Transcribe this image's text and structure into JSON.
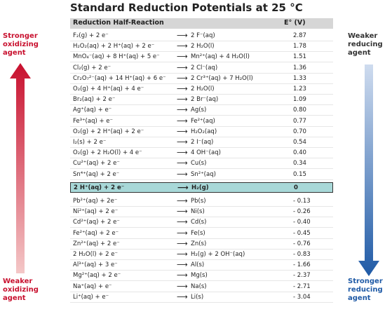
{
  "header": {
    "title": "Standard Reduction Potentials at 25 °C",
    "col_reaction": "Reduction Half-Reaction",
    "col_potential": "E° (V)"
  },
  "left_top": "Stronger oxidizing agent",
  "left_bottom": "Weaker oxidizing agent",
  "right_top": "Weaker reducing agent",
  "right_bottom": "Stronger reducing agent",
  "table": {
    "rows": [
      [
        "F₂(g) + 2 e⁻",
        "2 F⁻(aq)",
        "2.87"
      ],
      [
        "H₂O₂(aq) + 2 H⁺(aq) + 2 e⁻",
        "2 H₂O(l)",
        "1.78"
      ],
      [
        "MnO₄⁻(aq) + 8 H⁺(aq) + 5 e⁻",
        "Mn²⁺(aq) + 4 H₂O(l)",
        "1.51"
      ],
      [
        "Cl₂(g) + 2 e⁻",
        "2 Cl⁻(aq)",
        "1.36"
      ],
      [
        "Cr₂O₇²⁻(aq) + 14 H⁺(aq) + 6 e⁻",
        "2 Cr³⁺(aq) + 7 H₂O(l)",
        "1.33"
      ],
      [
        "O₂(g) + 4 H⁺(aq) + 4 e⁻",
        "2 H₂O(l)",
        "1.23"
      ],
      [
        "Br₂(aq) + 2 e⁻",
        "2 Br⁻(aq)",
        "1.09"
      ],
      [
        "Ag⁺(aq) + e⁻",
        "Ag(s)",
        "0.80"
      ],
      [
        "Fe³⁺(aq) + e⁻",
        "Fe²⁺(aq)",
        "0.77"
      ],
      [
        "O₂(g) + 2 H⁺(aq) + 2 e⁻",
        "H₂O₂(aq)",
        "0.70"
      ],
      [
        "I₂(s) + 2 e⁻",
        "2 I⁻(aq)",
        "0.54"
      ],
      [
        "O₂(g) + 2 H₂O(l) + 4 e⁻",
        "4 OH⁻(aq)",
        "0.40"
      ],
      [
        "Cu²⁺(aq) + 2 e⁻",
        "Cu(s)",
        "0.34"
      ],
      [
        "Sn⁴⁺(aq) + 2 e⁻",
        "Sn²⁺(aq)",
        "0.15"
      ],
      [
        "2 H⁺(aq) + 2 e⁻",
        "H₂(g)",
        "0"
      ],
      [
        "Pb²⁺(aq) + 2e⁻",
        "Pb(s)",
        "- 0.13"
      ],
      [
        "Ni²⁺(aq) + 2 e⁻",
        "Ni(s)",
        "- 0.26"
      ],
      [
        "Cd²⁺(aq) + 2 e⁻",
        "Cd(s)",
        "- 0.40"
      ],
      [
        "Fe²⁺(aq) + 2 e⁻",
        "Fe(s)",
        "- 0.45"
      ],
      [
        "Zn²⁺(aq) + 2 e⁻",
        "Zn(s)",
        "- 0.76"
      ],
      [
        "2 H₂O(l) + 2 e⁻",
        "H₂(g) + 2 OH⁻(aq)",
        "- 0.83"
      ],
      [
        "Al³⁺(aq) + 3 e⁻",
        "Al(s)",
        "- 1.66"
      ],
      [
        "Mg²⁺(aq) + 2 e⁻",
        "Mg(s)",
        "- 2.37"
      ],
      [
        "Na⁺(aq) + e⁻",
        "Na(s)",
        "- 2.71"
      ],
      [
        "Li⁺(aq) + e⁻",
        "Li(s)",
        "- 3.04"
      ]
    ],
    "highlight": 14
  }
}
